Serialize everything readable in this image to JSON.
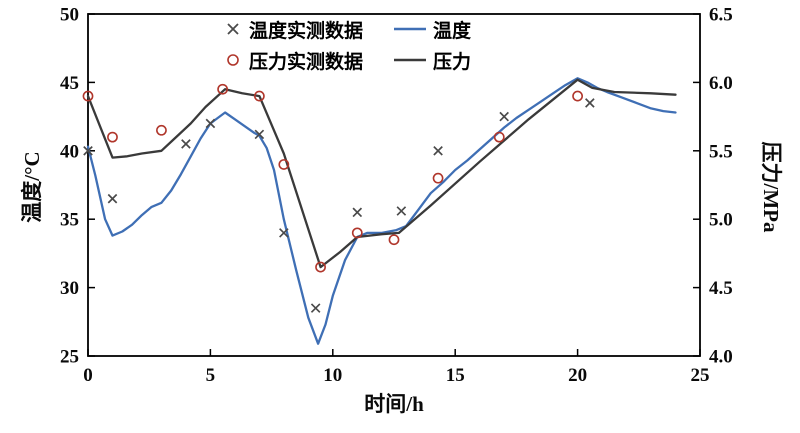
{
  "chart_data": {
    "type": "line",
    "title": "",
    "xlabel": "时间/h",
    "ylabel_left": "温度/°C",
    "ylabel_right": "压力/MPa",
    "xlim": [
      0,
      25
    ],
    "ylim_left": [
      25,
      50
    ],
    "ylim_right": [
      4.0,
      6.5
    ],
    "xticks": [
      0,
      5,
      10,
      15,
      20,
      25
    ],
    "yticks_left": [
      25,
      30,
      35,
      40,
      45,
      50
    ],
    "yticks_right": [
      "4.0",
      "4.5",
      "5.0",
      "5.5",
      "6.0",
      "6.5"
    ],
    "grid": false,
    "legend_position": "top-center-inside",
    "legend": {
      "temp_scatter": "温度实测数据",
      "temp_line": "温度",
      "pressure_scatter": "压力实测数据",
      "pressure_line": "压力"
    },
    "colors": {
      "temp_line": "#3f6fb5",
      "pressure_line": "#3a3a3a",
      "temp_marker": "#4a4a4a",
      "pressure_marker": "#b0362b"
    },
    "series": [
      {
        "id": "temp_line",
        "name": "温度",
        "type": "line",
        "axis": "left",
        "color": "#3f6fb5",
        "x": [
          0,
          0.3,
          0.7,
          1,
          1.4,
          1.8,
          2.2,
          2.6,
          3,
          3.4,
          3.8,
          4.2,
          4.6,
          5,
          5.3,
          5.6,
          6,
          6.4,
          6.8,
          7,
          7.3,
          7.6,
          8,
          8.5,
          9,
          9.4,
          9.7,
          10,
          10.5,
          11,
          11.4,
          12,
          12.6,
          13,
          13.5,
          14,
          14.5,
          15,
          15.5,
          16,
          16.5,
          17,
          17.5,
          18,
          18.5,
          19,
          19.5,
          20,
          20.4,
          20.8,
          21.2,
          21.8,
          22.4,
          23,
          23.5,
          24
        ],
        "y": [
          40.3,
          38.2,
          35.0,
          33.8,
          34.1,
          34.6,
          35.3,
          35.9,
          36.2,
          37.1,
          38.3,
          39.6,
          40.9,
          42.0,
          42.4,
          42.8,
          42.3,
          41.8,
          41.3,
          41.1,
          40.2,
          38.6,
          35.0,
          31.3,
          27.8,
          25.9,
          27.3,
          29.4,
          32.0,
          33.7,
          34.0,
          34.0,
          34.2,
          34.5,
          35.7,
          36.9,
          37.7,
          38.6,
          39.3,
          40.1,
          40.9,
          41.7,
          42.4,
          43.0,
          43.6,
          44.2,
          44.8,
          45.3,
          45.0,
          44.6,
          44.3,
          43.9,
          43.5,
          43.1,
          42.9,
          42.8
        ]
      },
      {
        "id": "pressure_line",
        "name": "压力",
        "type": "line",
        "axis": "right",
        "color": "#3a3a3a",
        "x": [
          0,
          1,
          1.6,
          2.2,
          3,
          3.6,
          4.2,
          4.8,
          5.6,
          6.3,
          7,
          8,
          9.5,
          10.3,
          11,
          12,
          12.7,
          14,
          16,
          18,
          20,
          20.6,
          21.5,
          23,
          24
        ],
        "y": [
          5.9,
          5.45,
          5.46,
          5.48,
          5.5,
          5.6,
          5.7,
          5.82,
          5.95,
          5.92,
          5.9,
          5.48,
          4.65,
          4.76,
          4.87,
          4.89,
          4.9,
          5.1,
          5.42,
          5.73,
          6.02,
          5.96,
          5.93,
          5.92,
          5.91
        ]
      },
      {
        "id": "temp_scatter",
        "name": "温度实测数据",
        "type": "scatter",
        "marker": "x",
        "axis": "left",
        "color": "#4a4a4a",
        "x": [
          0,
          1,
          4,
          5,
          7,
          8,
          9.3,
          11,
          12.8,
          14.3,
          17,
          20.5
        ],
        "y": [
          40.0,
          36.5,
          40.5,
          42.0,
          41.2,
          34.0,
          28.5,
          35.5,
          35.6,
          40.0,
          42.5,
          43.5
        ]
      },
      {
        "id": "pressure_scatter",
        "name": "压力实测数据",
        "type": "scatter",
        "marker": "o",
        "axis": "right",
        "color": "#b0362b",
        "x": [
          0,
          1,
          3,
          5.5,
          7,
          8,
          9.5,
          11,
          12.5,
          14.3,
          16.8,
          20
        ],
        "y": [
          5.9,
          5.6,
          5.65,
          5.95,
          5.9,
          5.4,
          4.65,
          4.9,
          4.85,
          5.3,
          5.6,
          5.9
        ]
      }
    ]
  }
}
